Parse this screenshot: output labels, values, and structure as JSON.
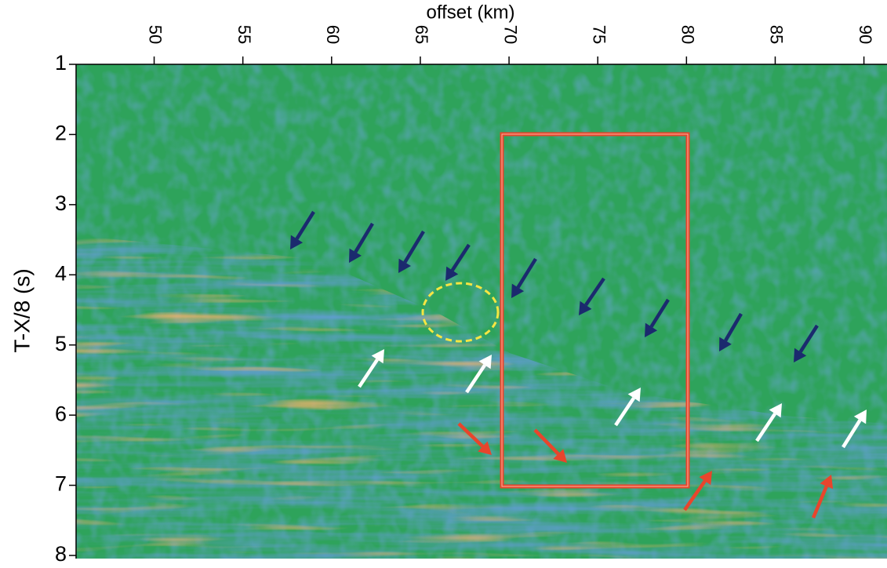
{
  "chart_data": {
    "type": "seismic",
    "title": "offset (km)",
    "y_label": "T-X/8 (s)",
    "xlim": [
      45.6,
      91.3
    ],
    "ylim": [
      1,
      8
    ],
    "y_inverted": true,
    "x_axis_position": "top",
    "xticks": [
      50,
      55,
      60,
      65,
      70,
      75,
      80,
      85,
      90
    ],
    "yticks": [
      1,
      2,
      3,
      4,
      5,
      6,
      7,
      8
    ]
  }
}
